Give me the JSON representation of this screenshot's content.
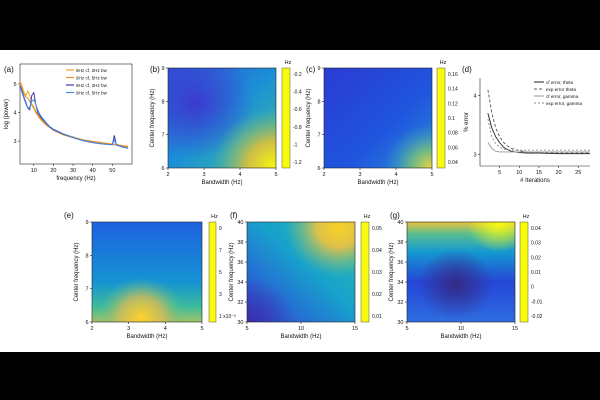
{
  "chart_data": [
    {
      "id": "a",
      "type": "line",
      "panel_label": "(a)",
      "xlabel": "frequency (Hz)",
      "ylabel": "log (power)",
      "xlim": [
        3,
        60
      ],
      "ylim": [
        2.2,
        5.7
      ],
      "xticks": [
        10,
        20,
        30,
        40,
        50
      ],
      "yticks": [
        3,
        4,
        5
      ],
      "series": [
        {
          "name": "6Hz cf, 2Hz bw",
          "color": "#f5a623",
          "x": [
            3,
            4,
            5,
            6,
            7,
            8,
            9,
            10,
            11,
            12,
            13,
            14,
            16,
            18,
            20,
            25,
            30,
            35,
            40,
            45,
            50,
            55,
            58
          ],
          "y": [
            5.1,
            4.95,
            4.7,
            4.6,
            4.75,
            4.6,
            4.3,
            4.2,
            4.05,
            3.95,
            3.85,
            3.75,
            3.6,
            3.5,
            3.4,
            3.25,
            3.15,
            3.05,
            3.0,
            2.95,
            2.9,
            2.85,
            2.82
          ]
        },
        {
          "name": "6Hz cf, 5Hz bw",
          "color": "#e8902a",
          "x": [
            3,
            4,
            5,
            6,
            7,
            8,
            9,
            10,
            11,
            12,
            13,
            14,
            16,
            18,
            20,
            25,
            30,
            35,
            40,
            45,
            50,
            55,
            58
          ],
          "y": [
            5.0,
            4.85,
            4.65,
            4.55,
            4.5,
            4.4,
            4.25,
            4.15,
            4.0,
            3.9,
            3.8,
            3.72,
            3.58,
            3.48,
            3.38,
            3.22,
            3.12,
            3.03,
            2.97,
            2.92,
            2.88,
            2.84,
            2.8
          ]
        },
        {
          "name": "9Hz cf, 2Hz bw",
          "color": "#3a3ab8",
          "x": [
            3,
            4,
            5,
            6,
            7,
            8,
            9,
            10,
            11,
            12,
            13,
            14,
            16,
            18,
            20,
            25,
            30,
            35,
            40,
            45,
            50,
            51,
            52,
            55,
            58
          ],
          "y": [
            4.95,
            4.75,
            4.55,
            4.35,
            4.15,
            4.1,
            4.6,
            4.7,
            4.3,
            4.0,
            3.9,
            3.8,
            3.65,
            3.5,
            3.4,
            3.25,
            3.12,
            3.02,
            2.95,
            2.9,
            2.88,
            3.2,
            2.88,
            2.8,
            2.76
          ]
        },
        {
          "name": "9Hz cf, 5Hz bw",
          "color": "#4a90e2",
          "x": [
            3,
            4,
            5,
            6,
            7,
            8,
            9,
            10,
            11,
            12,
            13,
            14,
            16,
            18,
            20,
            25,
            30,
            35,
            40,
            45,
            50,
            51,
            52,
            55,
            58
          ],
          "y": [
            4.9,
            4.7,
            4.5,
            4.3,
            4.15,
            4.2,
            4.4,
            4.45,
            4.3,
            4.1,
            3.95,
            3.85,
            3.68,
            3.52,
            3.42,
            3.26,
            3.13,
            3.03,
            2.96,
            2.9,
            2.87,
            3.05,
            2.86,
            2.79,
            2.75
          ]
        }
      ]
    },
    {
      "id": "b",
      "type": "heatmap",
      "panel_label": "(b)",
      "xlabel": "Bandwidth (Hz)",
      "ylabel": "Center frequency (Hz)",
      "xlim": [
        2,
        5
      ],
      "ylim": [
        6,
        9
      ],
      "xticks": [
        2,
        3,
        4,
        5
      ],
      "yticks": [
        6,
        7,
        8,
        9
      ],
      "colorbar": {
        "unit": "Hz",
        "range": [
          -1.2,
          0
        ],
        "ticks": [
          "-0.2",
          "-0.4",
          "-0.6",
          "-0.8",
          "-1",
          "-1.2"
        ],
        "colormap": "parula"
      }
    },
    {
      "id": "c",
      "type": "heatmap",
      "panel_label": "(c)",
      "xlabel": "Bandwidth (Hz)",
      "ylabel": "Center frequency (Hz)",
      "xlim": [
        2,
        5
      ],
      "ylim": [
        6,
        9
      ],
      "xticks": [
        2,
        3,
        4,
        5
      ],
      "yticks": [
        6,
        7,
        8,
        9
      ],
      "colorbar": {
        "unit": "Hz",
        "range": [
          0.03,
          0.17
        ],
        "ticks": [
          "0.16",
          "0.14",
          "0.12",
          "0.1",
          "0.08",
          "0.06",
          "0.04"
        ],
        "colormap": "parula"
      }
    },
    {
      "id": "d",
      "type": "line",
      "panel_label": "(d)",
      "xlabel": "# Iterations",
      "ylabel": "% error",
      "xlim": [
        0,
        28
      ],
      "ylim": [
        2.8,
        4.3
      ],
      "xticks": [
        5,
        10,
        15,
        20,
        25
      ],
      "yticks": [
        3,
        4
      ],
      "series": [
        {
          "name": "cf error, theta",
          "color": "#222222",
          "dash": "",
          "x": [
            2,
            3,
            4,
            5,
            6,
            7,
            8,
            10,
            12,
            15,
            20,
            25,
            28
          ],
          "y": [
            3.7,
            3.45,
            3.3,
            3.2,
            3.12,
            3.08,
            3.05,
            3.03,
            3.02,
            3.02,
            3.01,
            3.01,
            3.01
          ]
        },
        {
          "name": "exp error theta",
          "color": "#555555",
          "dash": "3,2",
          "x": [
            2,
            3,
            4,
            5,
            6,
            7,
            8,
            10,
            12,
            15,
            20,
            25,
            28
          ],
          "y": [
            4.1,
            3.7,
            3.45,
            3.3,
            3.2,
            3.14,
            3.1,
            3.06,
            3.04,
            3.03,
            3.02,
            3.02,
            3.02
          ]
        },
        {
          "name": "cf error, gamma",
          "color": "#999999",
          "dash": "",
          "x": [
            2,
            3,
            4,
            5,
            6,
            7,
            8,
            10,
            12,
            15,
            20,
            25,
            28
          ],
          "y": [
            3.2,
            3.1,
            3.05,
            3.04,
            3.04,
            3.04,
            3.04,
            3.04,
            3.04,
            3.04,
            3.04,
            3.04,
            3.04
          ]
        },
        {
          "name": "exp error, gamma",
          "color": "#888888",
          "dash": "2,2",
          "x": [
            2,
            3,
            4,
            5,
            6,
            7,
            8,
            10,
            12,
            15,
            20,
            25,
            28
          ],
          "y": [
            3.6,
            3.3,
            3.18,
            3.12,
            3.09,
            3.08,
            3.07,
            3.07,
            3.07,
            3.07,
            3.07,
            3.07,
            3.07
          ]
        }
      ]
    },
    {
      "id": "e",
      "type": "heatmap",
      "panel_label": "(e)",
      "xlabel": "Bandwidth (Hz)",
      "ylabel": "Center frequency (Hz)",
      "xlim": [
        2,
        5
      ],
      "ylim": [
        6,
        9
      ],
      "xticks": [
        2,
        3,
        4,
        5
      ],
      "yticks": [
        6,
        7,
        8,
        9
      ],
      "colorbar": {
        "unit": "Hz",
        "range": [
          0,
          9
        ],
        "ticks": [
          "9",
          "7",
          "5",
          "3",
          "1 x10⁻³"
        ],
        "colormap": "parula"
      }
    },
    {
      "id": "f",
      "type": "heatmap",
      "panel_label": "(f)",
      "xlabel": "Bandwidth (Hz)",
      "ylabel": "Center frequency (Hz)",
      "xlim": [
        5,
        15
      ],
      "ylim": [
        30,
        40
      ],
      "xticks": [
        5,
        10,
        15
      ],
      "yticks": [
        30,
        32,
        34,
        36,
        38,
        40
      ],
      "colorbar": {
        "unit": "Hz",
        "range": [
          0.005,
          0.055
        ],
        "ticks": [
          "0.05",
          "0.04",
          "0.03",
          "0.02",
          "0.01"
        ],
        "colormap": "parula"
      }
    },
    {
      "id": "g",
      "type": "heatmap",
      "panel_label": "(g)",
      "xlabel": "Bandwidth (Hz)",
      "ylabel": "Center frequency (Hz)",
      "xlim": [
        5,
        15
      ],
      "ylim": [
        30,
        40
      ],
      "xticks": [
        5,
        10,
        15
      ],
      "yticks": [
        30,
        32,
        34,
        36,
        38,
        40
      ],
      "colorbar": {
        "unit": "Hz",
        "range": [
          -0.025,
          0.045
        ],
        "ticks": [
          "0.04",
          "0.03",
          "0.02",
          "0.01",
          "0",
          "-0.01",
          "-0.02"
        ],
        "colormap": "parula"
      }
    }
  ]
}
